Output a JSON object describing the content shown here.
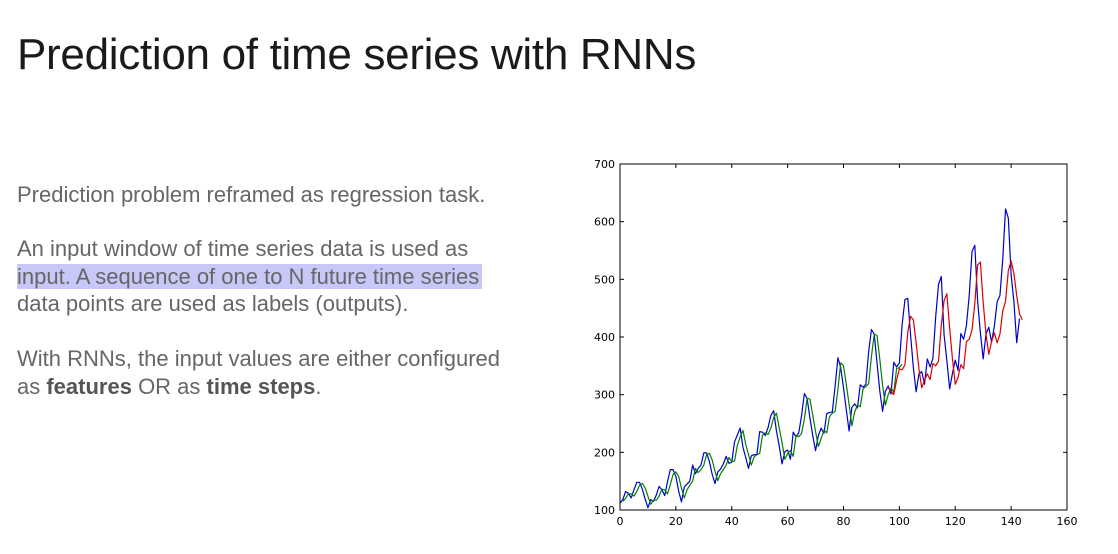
{
  "slide": {
    "title": "Prediction of time series with RNNs",
    "paragraph1": "Prediction problem reframed as regression task.",
    "paragraph2_line1": "An input window of time series data is used as",
    "paragraph2_line2": "input. A sequence of one to N future time series",
    "paragraph2_line3": "data points are used as labels (outputs).",
    "paragraph3_line1": "With RNNs, the input values are either configured",
    "paragraph3_prefix": "as ",
    "paragraph3_bold1": "features",
    "paragraph3_middle": " OR as ",
    "paragraph3_bold2": "time steps",
    "paragraph3_suffix": ".",
    "highlight_color": "#c8c8f8"
  },
  "chart_data": {
    "type": "line",
    "xlim": [
      0,
      160
    ],
    "ylim": [
      100,
      700
    ],
    "xticks": [
      0,
      20,
      40,
      60,
      80,
      100,
      120,
      140,
      160
    ],
    "yticks": [
      100,
      200,
      300,
      400,
      500,
      600,
      700
    ],
    "grid": false,
    "x_start": 0,
    "series": [
      {
        "color": "#0000cc",
        "x_start": 0,
        "values": [
          112,
          118,
          132,
          129,
          121,
          135,
          148,
          148,
          136,
          119,
          104,
          118,
          115,
          126,
          141,
          135,
          125,
          149,
          170,
          170,
          158,
          133,
          114,
          140,
          145,
          150,
          178,
          163,
          172,
          178,
          199,
          199,
          184,
          162,
          146,
          166,
          171,
          180,
          193,
          181,
          183,
          218,
          230,
          242,
          209,
          191,
          172,
          194,
          196,
          196,
          236,
          235,
          229,
          243,
          264,
          272,
          237,
          211,
          180,
          201,
          204,
          188,
          235,
          227,
          234,
          264,
          302,
          293,
          259,
          229,
          203,
          229,
          242,
          233,
          267,
          269,
          270,
          315,
          364,
          347,
          312,
          274,
          237,
          278,
          284,
          277,
          317,
          313,
          318,
          374,
          413,
          405,
          355,
          306,
          271,
          306,
          315,
          301,
          356,
          348,
          355,
          422,
          465,
          467,
          404,
          347,
          305,
          336,
          340,
          318,
          362,
          348,
          363,
          435,
          491,
          505,
          404,
          359,
          310,
          337,
          360,
          342,
          406,
          396,
          420,
          472,
          548,
          559,
          463,
          407,
          362,
          405,
          417,
          391,
          419,
          461,
          472,
          535,
          622,
          606,
          508,
          461,
          390,
          432
        ]
      },
      {
        "color": "#008000",
        "x_start": 1,
        "values": [
          115,
          120,
          128,
          128,
          124,
          132,
          143,
          146,
          138,
          124,
          110,
          117,
          117,
          124,
          136,
          135,
          128,
          144,
          162,
          166,
          158,
          138,
          121,
          135,
          143,
          150,
          172,
          165,
          170,
          178,
          196,
          198,
          187,
          167,
          151,
          163,
          170,
          178,
          191,
          184,
          185,
          212,
          227,
          238,
          214,
          196,
          178,
          192,
          196,
          198,
          230,
          234,
          231,
          242,
          260,
          268,
          242,
          217,
          188,
          198,
          203,
          193,
          229,
          227,
          233,
          258,
          294,
          292,
          264,
          236,
          210,
          224,
          238,
          234,
          262,
          268,
          271,
          309,
          355,
          350,
          318,
          283,
          246,
          270,
          282,
          279,
          310,
          314,
          319,
          366,
          405,
          403,
          361,
          316,
          282,
          300,
          312,
          304,
          345,
          347,
          353
        ]
      },
      {
        "color": "#dd0000",
        "x_start": 96,
        "values": [
          312,
          306,
          300,
          325,
          345,
          343,
          352,
          408,
          436,
          430,
          390,
          345,
          312,
          325,
          336,
          326,
          354,
          350,
          358,
          420,
          463,
          475,
          415,
          362,
          318,
          330,
          352,
          345,
          392,
          396,
          412,
          458,
          525,
          530,
          460,
          405,
          370,
          392,
          407,
          390,
          405,
          445,
          462,
          515,
          532,
          510,
          472,
          440,
          430
        ]
      }
    ]
  }
}
